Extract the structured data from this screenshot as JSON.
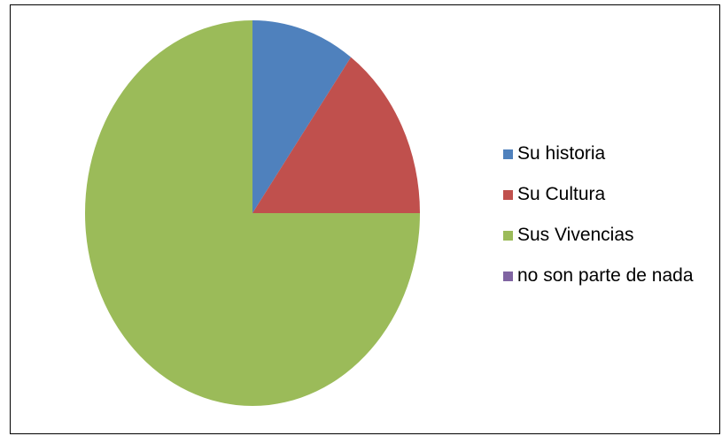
{
  "chart_data": {
    "type": "pie",
    "title": "",
    "categories": [
      "Su historia",
      "Su Cultura",
      "Sus Vivencias",
      "no son parte de nada"
    ],
    "values": [
      10,
      15,
      75,
      0
    ],
    "colors": [
      "#4f81bd",
      "#c0504d",
      "#9bbb59",
      "#8064a2"
    ],
    "start_angle_deg": 0,
    "direction": "clockwise",
    "legend_position": "right"
  }
}
